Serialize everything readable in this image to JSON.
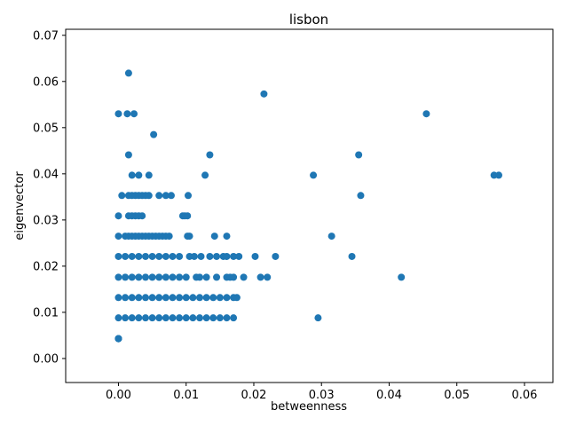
{
  "chart_data": {
    "type": "scatter",
    "title": "lisbon",
    "xlabel": "betweenness",
    "ylabel": "eigenvector",
    "xlim": [
      -0.0078,
      0.0642
    ],
    "ylim": [
      -0.0052,
      0.0713
    ],
    "xticks": [
      0.0,
      0.01,
      0.02,
      0.03,
      0.04,
      0.05,
      0.06
    ],
    "xtick_labels": [
      "0.00",
      "0.01",
      "0.02",
      "0.03",
      "0.04",
      "0.05",
      "0.06"
    ],
    "yticks": [
      0.0,
      0.01,
      0.02,
      0.03,
      0.04,
      0.05,
      0.06,
      0.07
    ],
    "ytick_labels": [
      "0.00",
      "0.01",
      "0.02",
      "0.03",
      "0.04",
      "0.05",
      "0.06",
      "0.07"
    ],
    "grid": false,
    "marker_color": "#1f77b4",
    "series": [
      {
        "x": [
          0.0,
          0.0,
          0.0,
          0.0,
          0.0,
          0.0,
          0.001,
          0.002,
          0.003,
          0.004,
          0.005,
          0.006,
          0.007,
          0.008,
          0.009,
          0.01,
          0.011,
          0.012,
          0.013,
          0.014,
          0.015,
          0.016,
          0.017,
          0.0295,
          0.0,
          0.001,
          0.002,
          0.003,
          0.004,
          0.005,
          0.006,
          0.007,
          0.008,
          0.009,
          0.01,
          0.011,
          0.012,
          0.013,
          0.014,
          0.015,
          0.016,
          0.017,
          0.0175,
          0.0,
          0.001,
          0.002,
          0.003,
          0.004,
          0.005,
          0.006,
          0.007,
          0.008,
          0.009,
          0.01,
          0.0115,
          0.012,
          0.013,
          0.0145,
          0.016,
          0.0165,
          0.017,
          0.0185,
          0.021,
          0.022,
          0.0418,
          0.0,
          0.001,
          0.002,
          0.003,
          0.004,
          0.005,
          0.006,
          0.007,
          0.008,
          0.009,
          0.0105,
          0.0112,
          0.0122,
          0.0135,
          0.0145,
          0.0155,
          0.016,
          0.017,
          0.0178,
          0.0202,
          0.0232,
          0.0345,
          0.0,
          0.001,
          0.0015,
          0.002,
          0.0025,
          0.003,
          0.0035,
          0.004,
          0.0045,
          0.005,
          0.0055,
          0.006,
          0.0065,
          0.007,
          0.0075,
          0.0102,
          0.0105,
          0.0142,
          0.016,
          0.0315,
          0.0,
          0.0015,
          0.002,
          0.0025,
          0.003,
          0.0035,
          0.0095,
          0.0098,
          0.0102,
          0.0005,
          0.0015,
          0.002,
          0.0025,
          0.003,
          0.0035,
          0.004,
          0.0045,
          0.006,
          0.007,
          0.0078,
          0.0103,
          0.0358,
          0.002,
          0.003,
          0.0045,
          0.0128,
          0.0288,
          0.0555,
          0.0562,
          0.0015,
          0.0135,
          0.0355,
          0.0052,
          0.0,
          0.0013,
          0.0023,
          0.0455,
          0.0215,
          0.0015
        ],
        "y": [
          0.0043,
          0.0043,
          0.0043,
          0.0043,
          0.0043,
          0.0088,
          0.0088,
          0.0088,
          0.0088,
          0.0088,
          0.0088,
          0.0088,
          0.0088,
          0.0088,
          0.0088,
          0.0088,
          0.0088,
          0.0088,
          0.0088,
          0.0088,
          0.0088,
          0.0088,
          0.0088,
          0.0088,
          0.0132,
          0.0132,
          0.0132,
          0.0132,
          0.0132,
          0.0132,
          0.0132,
          0.0132,
          0.0132,
          0.0132,
          0.0132,
          0.0132,
          0.0132,
          0.0132,
          0.0132,
          0.0132,
          0.0132,
          0.0132,
          0.0132,
          0.0176,
          0.0176,
          0.0176,
          0.0176,
          0.0176,
          0.0176,
          0.0176,
          0.0176,
          0.0176,
          0.0176,
          0.0176,
          0.0176,
          0.0176,
          0.0176,
          0.0176,
          0.0176,
          0.0176,
          0.0176,
          0.0176,
          0.0176,
          0.0176,
          0.0176,
          0.0221,
          0.0221,
          0.0221,
          0.0221,
          0.0221,
          0.0221,
          0.0221,
          0.0221,
          0.0221,
          0.0221,
          0.0221,
          0.0221,
          0.0221,
          0.0221,
          0.0221,
          0.0221,
          0.0221,
          0.0221,
          0.0221,
          0.0221,
          0.0221,
          0.0221,
          0.0265,
          0.0265,
          0.0265,
          0.0265,
          0.0265,
          0.0265,
          0.0265,
          0.0265,
          0.0265,
          0.0265,
          0.0265,
          0.0265,
          0.0265,
          0.0265,
          0.0265,
          0.0265,
          0.0265,
          0.0265,
          0.0265,
          0.0265,
          0.0309,
          0.0309,
          0.0309,
          0.0309,
          0.0309,
          0.0309,
          0.0309,
          0.0309,
          0.0309,
          0.0353,
          0.0353,
          0.0353,
          0.0353,
          0.0353,
          0.0353,
          0.0353,
          0.0353,
          0.0353,
          0.0353,
          0.0353,
          0.0353,
          0.0353,
          0.0397,
          0.0397,
          0.0397,
          0.0397,
          0.0397,
          0.0397,
          0.0397,
          0.0441,
          0.0441,
          0.0441,
          0.0485,
          0.053,
          0.053,
          0.053,
          0.053,
          0.0573,
          0.0618
        ]
      }
    ]
  }
}
